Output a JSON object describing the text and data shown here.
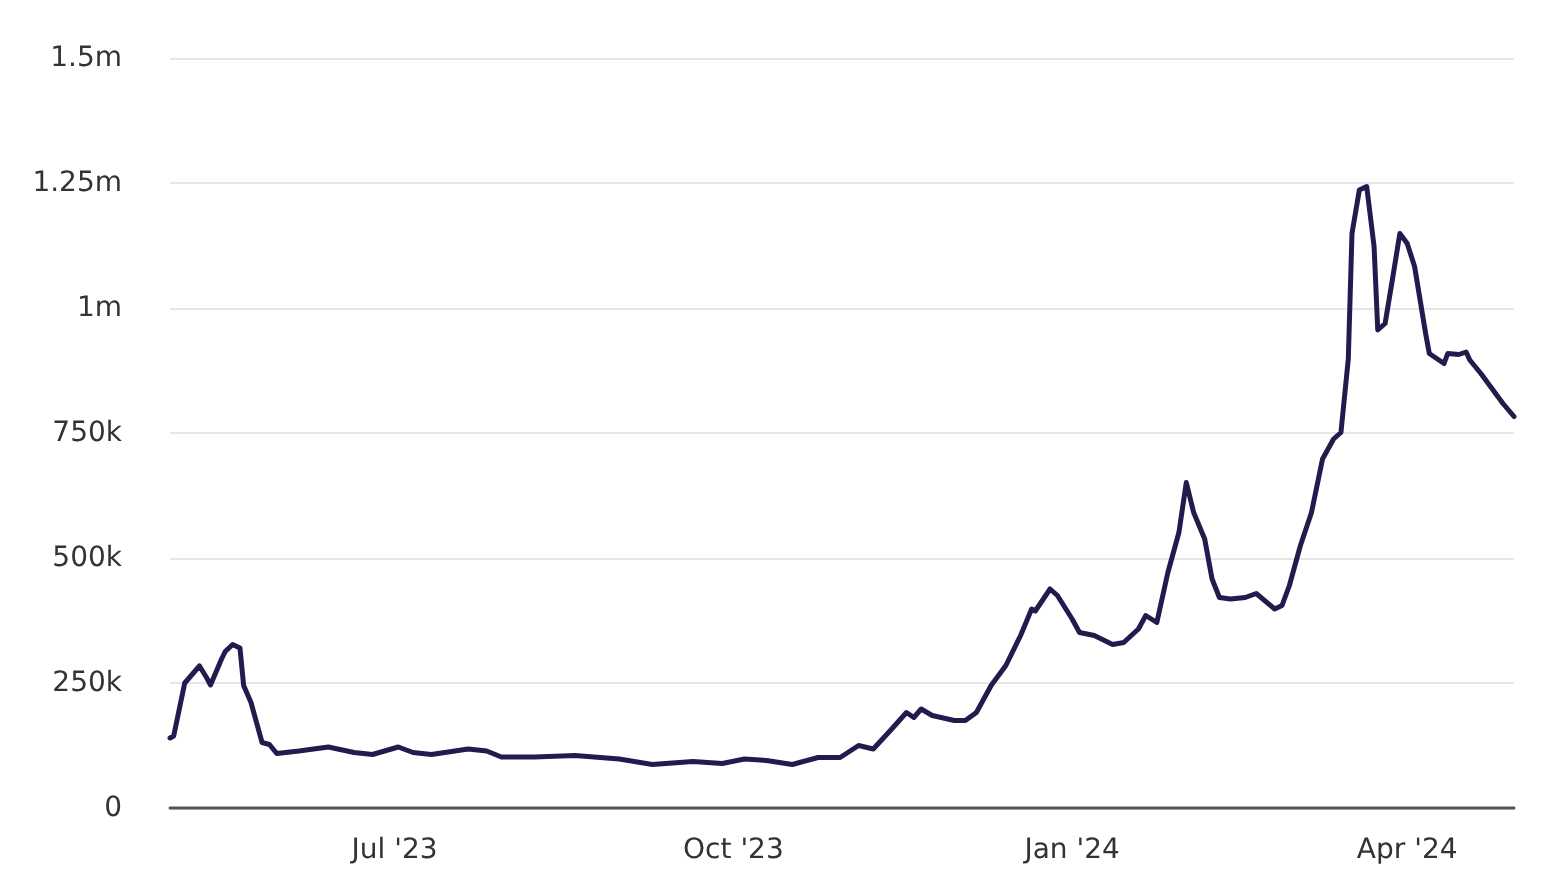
{
  "chart_data": {
    "type": "line",
    "series": [
      {
        "color": "#221c4e",
        "x": [
          "2023-05-01",
          "2023-05-02",
          "2023-05-05",
          "2023-05-09",
          "2023-05-11",
          "2023-05-12",
          "2023-05-15",
          "2023-05-16",
          "2023-05-18",
          "2023-05-20",
          "2023-05-21",
          "2023-05-23",
          "2023-05-26",
          "2023-05-28",
          "2023-05-30",
          "2023-06-05",
          "2023-06-13",
          "2023-06-20",
          "2023-06-25",
          "2023-07-02",
          "2023-07-06",
          "2023-07-11",
          "2023-07-21",
          "2023-07-26",
          "2023-07-30",
          "2023-08-08",
          "2023-08-19",
          "2023-08-31",
          "2023-09-09",
          "2023-09-20",
          "2023-09-28",
          "2023-10-04",
          "2023-10-10",
          "2023-10-17",
          "2023-10-24",
          "2023-10-30",
          "2023-11-04",
          "2023-11-08",
          "2023-11-13",
          "2023-11-17",
          "2023-11-19",
          "2023-11-21",
          "2023-11-24",
          "2023-11-30",
          "2023-12-03",
          "2023-12-06",
          "2023-12-10",
          "2023-12-14",
          "2023-12-18",
          "2023-12-21",
          "2023-12-22",
          "2023-12-26",
          "2023-12-28",
          "2024-01-01",
          "2024-01-03",
          "2024-01-07",
          "2024-01-12",
          "2024-01-15",
          "2024-01-19",
          "2024-01-21",
          "2024-01-24",
          "2024-01-27",
          "2024-01-30",
          "2024-02-01",
          "2024-02-03",
          "2024-02-06",
          "2024-02-08",
          "2024-02-10",
          "2024-02-13",
          "2024-02-17",
          "2024-02-20",
          "2024-02-25",
          "2024-02-27",
          "2024-02-29",
          "2024-03-03",
          "2024-03-06",
          "2024-03-09",
          "2024-03-12",
          "2024-03-14",
          "2024-03-16",
          "2024-03-17",
          "2024-03-19",
          "2024-03-21",
          "2024-03-23",
          "2024-03-24",
          "2024-03-26",
          "2024-03-28",
          "2024-03-30",
          "2024-04-01",
          "2024-04-03",
          "2024-04-06",
          "2024-04-07",
          "2024-04-11",
          "2024-04-12",
          "2024-04-15",
          "2024-04-17",
          "2024-04-18",
          "2024-04-21",
          "2024-04-25",
          "2024-04-27",
          "2024-04-30"
        ],
        "values": [
          140000,
          144000,
          250000,
          284000,
          260000,
          246000,
          298000,
          313000,
          327000,
          320000,
          245000,
          211000,
          131000,
          127000,
          109000,
          114000,
          122000,
          111000,
          107000,
          122000,
          111000,
          107000,
          118000,
          114000,
          102000,
          102000,
          105000,
          98000,
          87000,
          93000,
          89000,
          98000,
          95000,
          87000,
          101000,
          101000,
          125000,
          118000,
          158000,
          191000,
          181000,
          198000,
          185000,
          175000,
          175000,
          191000,
          245000,
          285000,
          345000,
          398000,
          394000,
          438000,
          425000,
          378000,
          351000,
          345000,
          327000,
          331000,
          358000,
          385000,
          371000,
          471000,
          551000,
          651000,
          591000,
          538000,
          458000,
          421000,
          418000,
          421000,
          429000,
          398000,
          405000,
          445000,
          525000,
          591000,
          698000,
          738000,
          751000,
          898000,
          1149000,
          1236000,
          1243000,
          1123000,
          956000,
          969000,
          1058000,
          1149000,
          1129000,
          1083000,
          949000,
          909000,
          889000,
          909000,
          907000,
          912000,
          896000,
          869000,
          829000,
          809000,
          783000
        ]
      }
    ],
    "xlim": [
      "2023-05-01",
      "2024-04-30"
    ],
    "xticks": [
      {
        "value": "2023-07-01",
        "label": "Jul '23"
      },
      {
        "value": "2023-10-01",
        "label": "Oct '23"
      },
      {
        "value": "2024-01-01",
        "label": "Jan '24"
      },
      {
        "value": "2024-04-01",
        "label": "Apr '24"
      }
    ],
    "ylim": [
      0,
      1500000
    ],
    "yticks": [
      0,
      {
        "value": 250000,
        "label": "250k"
      },
      {
        "value": 500000,
        "label": "500k"
      },
      {
        "value": 750000,
        "label": "750k"
      },
      {
        "value": 1000000,
        "label": "1m"
      },
      {
        "value": 1250000,
        "label": "1.25m"
      },
      {
        "value": 1500000,
        "label": "1.5m"
      }
    ],
    "grid": "y",
    "marker": "none",
    "line_style": "solid"
  }
}
